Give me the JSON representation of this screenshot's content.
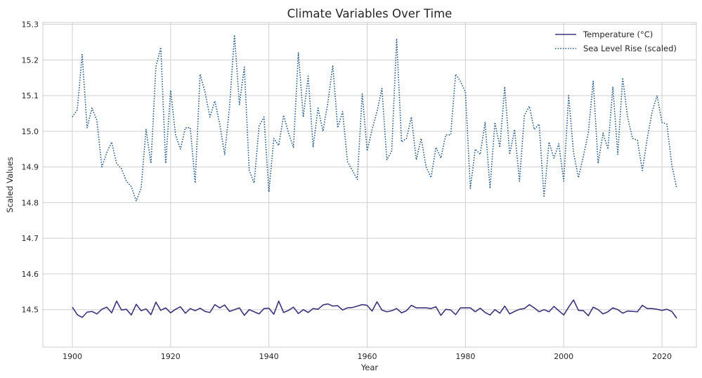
{
  "chart_data": {
    "type": "line",
    "title": "Climate Variables Over Time",
    "xlabel": "Year",
    "ylabel": "Scaled Values",
    "xlim": [
      1894,
      2027
    ],
    "ylim": [
      14.395,
      15.305
    ],
    "x_ticks": [
      1900,
      1920,
      1940,
      1960,
      1980,
      2000,
      2020
    ],
    "y_ticks": [
      14.5,
      14.6,
      14.7,
      14.8,
      14.9,
      15.0,
      15.1,
      15.2,
      15.3
    ],
    "grid": true,
    "legend_position": "top-right",
    "x": [
      1900,
      1901,
      1902,
      1903,
      1904,
      1905,
      1906,
      1907,
      1908,
      1909,
      1910,
      1911,
      1912,
      1913,
      1914,
      1915,
      1916,
      1917,
      1918,
      1919,
      1920,
      1921,
      1922,
      1923,
      1924,
      1925,
      1926,
      1927,
      1928,
      1929,
      1930,
      1931,
      1932,
      1933,
      1934,
      1935,
      1936,
      1937,
      1938,
      1939,
      1940,
      1941,
      1942,
      1943,
      1944,
      1945,
      1946,
      1947,
      1948,
      1949,
      1950,
      1951,
      1952,
      1953,
      1954,
      1955,
      1956,
      1957,
      1958,
      1959,
      1960,
      1961,
      1962,
      1963,
      1964,
      1965,
      1966,
      1967,
      1968,
      1969,
      1970,
      1971,
      1972,
      1973,
      1974,
      1975,
      1976,
      1977,
      1978,
      1979,
      1980,
      1981,
      1982,
      1983,
      1984,
      1985,
      1986,
      1987,
      1988,
      1989,
      1990,
      1991,
      1992,
      1993,
      1994,
      1995,
      1996,
      1997,
      1998,
      1999,
      2000,
      2001,
      2002,
      2003,
      2004,
      2005,
      2006,
      2007,
      2008,
      2009,
      2010,
      2011,
      2012,
      2013,
      2014,
      2015,
      2016,
      2017,
      2018,
      2019,
      2020,
      2021,
      2022,
      2023
    ],
    "series": [
      {
        "name": "Temperature (°C)",
        "color": "#3b3479",
        "style": "solid",
        "values": [
          14.507,
          14.486,
          14.478,
          14.493,
          14.495,
          14.488,
          14.501,
          14.507,
          14.491,
          14.524,
          14.499,
          14.501,
          14.485,
          14.515,
          14.497,
          14.502,
          14.486,
          14.521,
          14.498,
          14.505,
          14.491,
          14.501,
          14.508,
          14.49,
          14.503,
          14.497,
          14.504,
          14.495,
          14.492,
          14.514,
          14.505,
          14.513,
          14.495,
          14.5,
          14.505,
          14.484,
          14.5,
          14.494,
          14.488,
          14.503,
          14.504,
          14.487,
          14.524,
          14.492,
          14.498,
          14.507,
          14.489,
          14.5,
          14.492,
          14.503,
          14.501,
          14.513,
          14.516,
          14.51,
          14.511,
          14.499,
          14.505,
          14.506,
          14.51,
          14.514,
          14.512,
          14.496,
          14.522,
          14.499,
          14.494,
          14.497,
          14.503,
          14.491,
          14.497,
          14.512,
          14.505,
          14.505,
          14.505,
          14.503,
          14.508,
          14.484,
          14.501,
          14.499,
          14.486,
          14.505,
          14.505,
          14.505,
          14.494,
          14.504,
          14.492,
          14.485,
          14.5,
          14.49,
          14.51,
          14.488,
          14.495,
          14.501,
          14.503,
          14.514,
          14.505,
          14.494,
          14.5,
          14.494,
          14.509,
          14.497,
          14.485,
          14.507,
          14.527,
          14.498,
          14.497,
          14.483,
          14.507,
          14.5,
          14.488,
          14.494,
          14.505,
          14.5,
          14.49,
          14.496,
          14.495,
          14.494,
          14.512,
          14.503,
          14.503,
          14.501,
          14.498,
          14.501,
          14.495,
          14.476
        ]
      },
      {
        "name": "Sea Level Rise (scaled)",
        "color": "#2b5c8a",
        "style": "dotted",
        "values": [
          15.04,
          15.06,
          15.215,
          15.01,
          15.065,
          15.03,
          14.9,
          14.94,
          14.97,
          14.91,
          14.895,
          14.86,
          14.845,
          14.805,
          14.84,
          15.005,
          14.91,
          15.18,
          15.235,
          14.91,
          15.115,
          14.99,
          14.95,
          15.01,
          15.01,
          14.855,
          15.16,
          15.11,
          15.04,
          15.085,
          15.02,
          14.935,
          15.07,
          15.27,
          15.075,
          15.18,
          14.89,
          14.855,
          15.015,
          15.04,
          14.83,
          14.98,
          14.96,
          15.045,
          14.995,
          14.955,
          15.22,
          15.04,
          15.155,
          14.955,
          15.065,
          15.0,
          15.08,
          15.185,
          15.01,
          15.055,
          14.915,
          14.89,
          14.865,
          15.105,
          14.945,
          15.005,
          15.055,
          15.12,
          14.92,
          14.945,
          15.26,
          14.97,
          14.98,
          15.04,
          14.92,
          14.98,
          14.9,
          14.87,
          14.955,
          14.925,
          14.99,
          14.99,
          15.16,
          15.14,
          15.11,
          14.84,
          14.95,
          14.935,
          15.025,
          14.84,
          15.025,
          14.955,
          15.125,
          14.935,
          15.005,
          14.86,
          15.045,
          15.07,
          15.005,
          15.02,
          14.815,
          14.97,
          14.925,
          14.965,
          14.86,
          15.1,
          14.94,
          14.87,
          14.93,
          14.995,
          15.14,
          14.91,
          14.995,
          14.95,
          15.125,
          14.935,
          15.15,
          15.04,
          14.98,
          14.975,
          14.89,
          14.98,
          15.055,
          15.1,
          15.025,
          15.02,
          14.905,
          14.84
        ]
      }
    ]
  }
}
